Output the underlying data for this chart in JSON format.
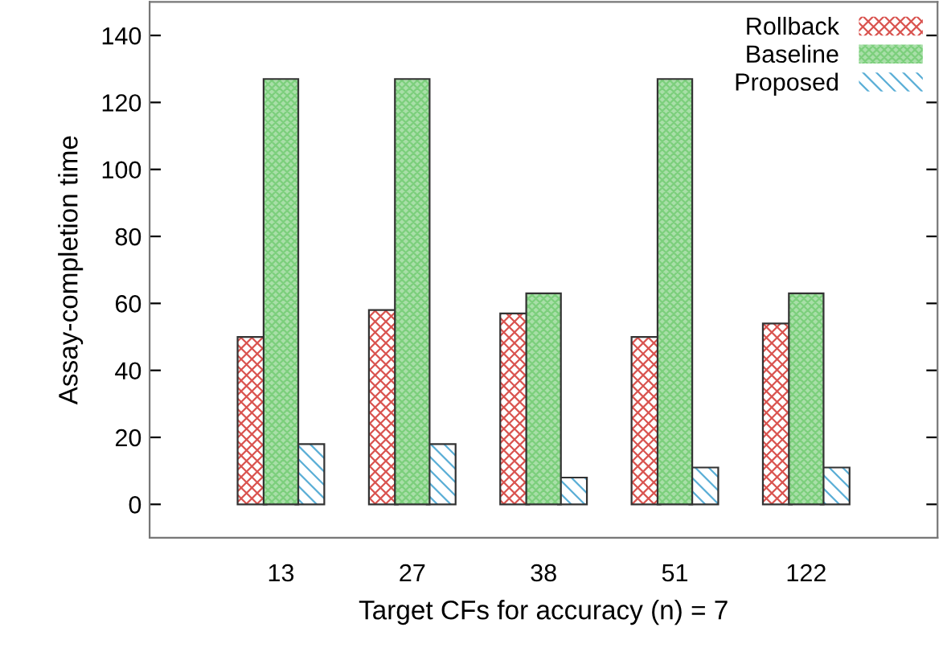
{
  "chart_data": {
    "type": "bar",
    "xlabel": "Target CFs for accuracy (n) = 7",
    "ylabel": "Assay-completion time",
    "categories": [
      "13",
      "27",
      "38",
      "51",
      "122"
    ],
    "series": [
      {
        "name": "Rollback",
        "color": "#d9534f",
        "values": [
          50,
          58,
          57,
          50,
          54
        ]
      },
      {
        "name": "Baseline",
        "color": "#7ccf7c",
        "values": [
          127,
          127,
          63,
          127,
          63
        ]
      },
      {
        "name": "Proposed",
        "color": "#5aaed6",
        "values": [
          18,
          18,
          8,
          11,
          11
        ]
      }
    ],
    "ylim": [
      -10,
      150
    ],
    "yticks": [
      0,
      20,
      40,
      60,
      80,
      100,
      120,
      140
    ],
    "grid": false,
    "legend": "top right"
  }
}
